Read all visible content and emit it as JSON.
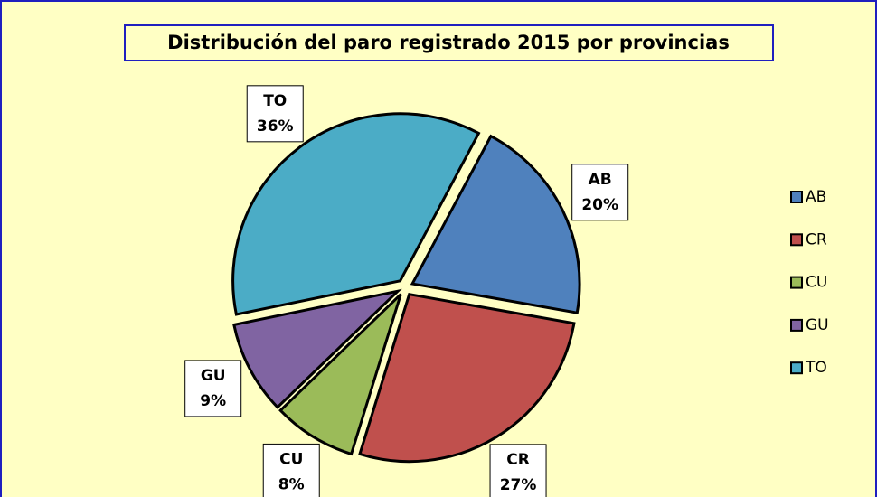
{
  "chart_data": {
    "type": "pie",
    "title": "Distribución del paro registrado 2015 por provincias",
    "categories": [
      "AB",
      "CR",
      "CU",
      "GU",
      "TO"
    ],
    "values": [
      20,
      27,
      8,
      9,
      36
    ],
    "value_labels": [
      "20%",
      "27%",
      "8%",
      "9%",
      "36%"
    ],
    "colors": [
      "#4f81bd",
      "#c0504d",
      "#9bbb59",
      "#8064a2",
      "#4bacc6"
    ],
    "legend": "right"
  }
}
